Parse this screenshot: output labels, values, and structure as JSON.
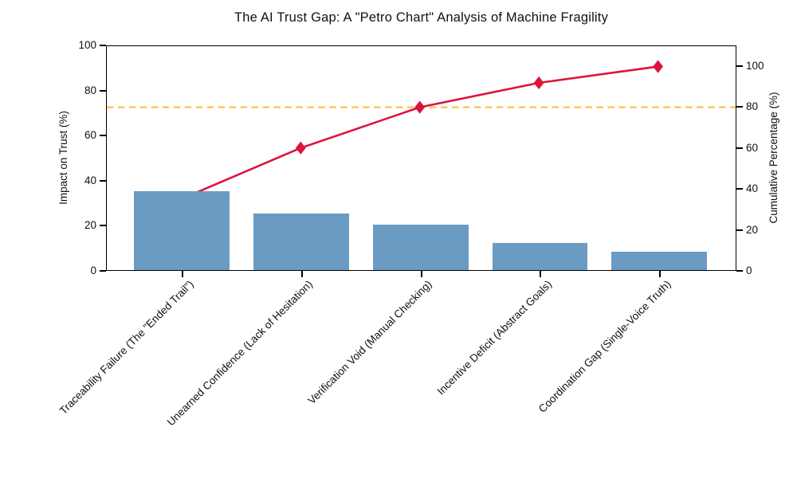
{
  "chart_data": {
    "type": "pareto",
    "combo": "bar+line",
    "title": "The AI Trust Gap: A \"Petro Chart\" Analysis of Machine Fragility",
    "categories": [
      "Traceability Failure (The \"Ended Trail\")",
      "Unearned Confidence (Lack of Hesitation)",
      "Verification Void (Manual Checking)",
      "Incentive Deficit (Abstract Goals)",
      "Coordination Gap (Single-Voice Truth)"
    ],
    "series": [
      {
        "name": "Impact on Trust",
        "type": "bar",
        "axis": "left",
        "values": [
          35,
          25,
          20,
          12,
          8
        ],
        "color": "#6b9bc3"
      },
      {
        "name": "Cumulative Percentage",
        "type": "line",
        "axis": "right",
        "values": [
          35,
          60,
          80,
          92,
          100
        ],
        "color": "#dc143c",
        "marker": "diamond"
      }
    ],
    "threshold_line": {
      "value": 80,
      "axis": "right",
      "style": "dashed",
      "color": "#ffc04d"
    },
    "left_axis": {
      "label": "Impact on Trust (%)",
      "min": 0,
      "max": 100,
      "ticks": [
        0,
        20,
        40,
        60,
        80,
        100
      ]
    },
    "right_axis": {
      "label": "Cumulative Percentage (%)",
      "min": 0,
      "max": 110,
      "ticks": [
        0,
        20,
        40,
        60,
        80,
        100
      ]
    },
    "x_axis": {
      "tick_rotation_deg": -45
    },
    "grid": false,
    "legend": null,
    "colors": {
      "background": "#ffffff",
      "text": "#111111",
      "spine": "#000000"
    }
  }
}
